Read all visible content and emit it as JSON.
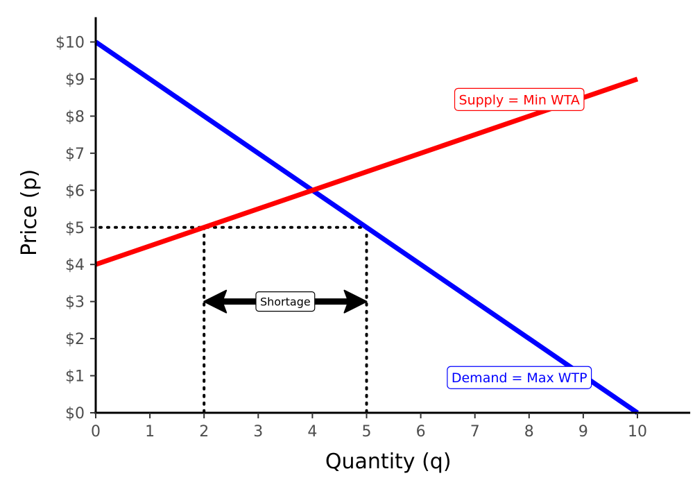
{
  "chart_data": {
    "type": "line",
    "title": "",
    "xlabel": "Quantity (q)",
    "ylabel": "Price (p)",
    "xlim": [
      0,
      11
    ],
    "ylim": [
      0,
      10.5
    ],
    "x_ticks": [
      0,
      1,
      2,
      3,
      4,
      5,
      6,
      7,
      8,
      9,
      10
    ],
    "x_tick_labels": [
      "0",
      "1",
      "2",
      "3",
      "4",
      "5",
      "6",
      "7",
      "8",
      "9",
      "10"
    ],
    "y_ticks": [
      0,
      1,
      2,
      3,
      4,
      5,
      6,
      7,
      8,
      9,
      10
    ],
    "y_tick_labels": [
      "$0",
      "$1",
      "$2",
      "$3",
      "$4",
      "$5",
      "$6",
      "$7",
      "$8",
      "$9",
      "$10"
    ],
    "grid": false,
    "series": [
      {
        "name": "Demand = Max WTP",
        "color": "#0000ff",
        "x": [
          0,
          10
        ],
        "y": [
          10,
          0
        ]
      },
      {
        "name": "Supply = Min WTA",
        "color": "#ff0000",
        "x": [
          0,
          10
        ],
        "y": [
          4,
          9
        ]
      }
    ],
    "curve_labels": [
      {
        "text": "Supply = Min WTA",
        "x": 7.82,
        "y": 8.45,
        "color": "#ff0000"
      },
      {
        "text": "Demand = Max WTP",
        "x": 7.82,
        "y": 0.95,
        "color": "#0000ff"
      }
    ],
    "price_line": {
      "y": 5,
      "x_from": 0,
      "x_to": 5
    },
    "quantity_lines": [
      {
        "x": 2,
        "y_from": 0,
        "y_to": 5
      },
      {
        "x": 5,
        "y_from": 0,
        "y_to": 5
      }
    ],
    "shortage": {
      "label": "Shortage",
      "x_from": 2,
      "x_to": 5,
      "y": 3
    }
  }
}
